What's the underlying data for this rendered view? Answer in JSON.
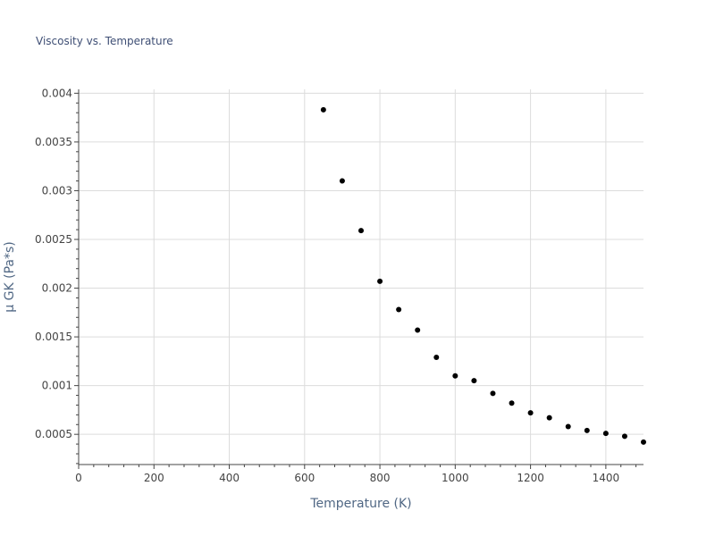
{
  "chart_data": {
    "type": "scatter",
    "title": "Viscosity vs. Temperature",
    "xlabel": "Temperature (K)",
    "ylabel": "μ GK (Pa*s)",
    "xlim": [
      0,
      1500
    ],
    "ylim": [
      0.00019,
      0.00404
    ],
    "x_ticks": [
      0,
      200,
      400,
      600,
      800,
      1000,
      1200,
      1400
    ],
    "x_tick_labels": [
      "0",
      "200",
      "400",
      "600",
      "800",
      "1000",
      "1200",
      "1400"
    ],
    "y_ticks": [
      0.0005,
      0.001,
      0.0015,
      0.002,
      0.0025,
      0.003,
      0.0035,
      0.004
    ],
    "y_tick_labels": [
      "0.0005",
      "0.001",
      "0.0015",
      "0.002",
      "0.0025",
      "0.003",
      "0.0035",
      "0.004"
    ],
    "grid": true,
    "marker_color": "#000000",
    "x": [
      650,
      700,
      750,
      800,
      850,
      900,
      950,
      1000,
      1050,
      1100,
      1150,
      1200,
      1250,
      1300,
      1350,
      1400,
      1450,
      1500
    ],
    "y": [
      0.00383,
      0.0031,
      0.00259,
      0.00207,
      0.00178,
      0.00157,
      0.00129,
      0.0011,
      0.00105,
      0.00092,
      0.00082,
      0.00072,
      0.00067,
      0.00058,
      0.00054,
      0.00051,
      0.00048,
      0.00042
    ]
  }
}
